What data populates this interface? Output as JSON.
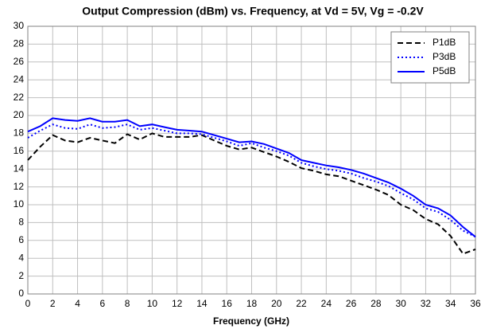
{
  "chart_data": {
    "type": "line",
    "title": "Output Compression (dBm) vs. Frequency, at Vd = 5V, Vg = -0.2V",
    "x_label": "Frequency (GHz)",
    "x": [
      0,
      1,
      2,
      3,
      4,
      5,
      6,
      7,
      8,
      9,
      10,
      11,
      12,
      13,
      14,
      15,
      16,
      17,
      18,
      19,
      20,
      21,
      22,
      23,
      24,
      25,
      26,
      27,
      28,
      29,
      30,
      31,
      32,
      33,
      34,
      35,
      36
    ],
    "series": [
      {
        "name": "P1dB",
        "color": "#000000",
        "linestyle": "dashed",
        "values": [
          15.0,
          16.5,
          17.8,
          17.2,
          17.0,
          17.5,
          17.2,
          16.9,
          17.9,
          17.3,
          18.0,
          17.6,
          17.6,
          17.6,
          17.8,
          17.2,
          16.6,
          16.2,
          16.4,
          15.9,
          15.4,
          14.8,
          14.1,
          13.8,
          13.4,
          13.2,
          12.7,
          12.2,
          11.7,
          11.1,
          10.0,
          9.4,
          8.4,
          7.8,
          6.5,
          4.5,
          5.0
        ]
      },
      {
        "name": "P3dB",
        "color": "#0000ff",
        "linestyle": "dotted",
        "values": [
          17.5,
          18.3,
          19.0,
          18.6,
          18.5,
          19.0,
          18.6,
          18.7,
          19.0,
          18.4,
          18.6,
          18.3,
          18.0,
          18.0,
          17.9,
          17.5,
          17.1,
          16.6,
          16.9,
          16.4,
          16.0,
          15.5,
          14.7,
          14.3,
          14.0,
          13.8,
          13.5,
          13.0,
          12.6,
          12.1,
          11.3,
          10.6,
          9.6,
          9.2,
          8.3,
          7.1,
          6.4
        ]
      },
      {
        "name": "P5dB",
        "color": "#0000ff",
        "linestyle": "solid",
        "values": [
          18.2,
          18.8,
          19.7,
          19.5,
          19.4,
          19.7,
          19.3,
          19.3,
          19.5,
          18.8,
          19.0,
          18.7,
          18.4,
          18.3,
          18.2,
          17.8,
          17.4,
          17.0,
          17.1,
          16.8,
          16.3,
          15.8,
          15.0,
          14.7,
          14.4,
          14.2,
          13.9,
          13.5,
          13.0,
          12.5,
          11.8,
          11.0,
          10.0,
          9.6,
          8.8,
          7.5,
          6.4
        ]
      }
    ],
    "xlim": [
      0,
      36
    ],
    "xticks": [
      0,
      2,
      4,
      6,
      8,
      10,
      12,
      14,
      16,
      18,
      20,
      22,
      24,
      26,
      28,
      30,
      32,
      34,
      36
    ],
    "ylim": [
      0,
      30
    ],
    "yticks": [
      0,
      2,
      4,
      6,
      8,
      10,
      12,
      14,
      16,
      18,
      20,
      22,
      24,
      26,
      28,
      30
    ],
    "grid": true,
    "legend": "upper right"
  }
}
